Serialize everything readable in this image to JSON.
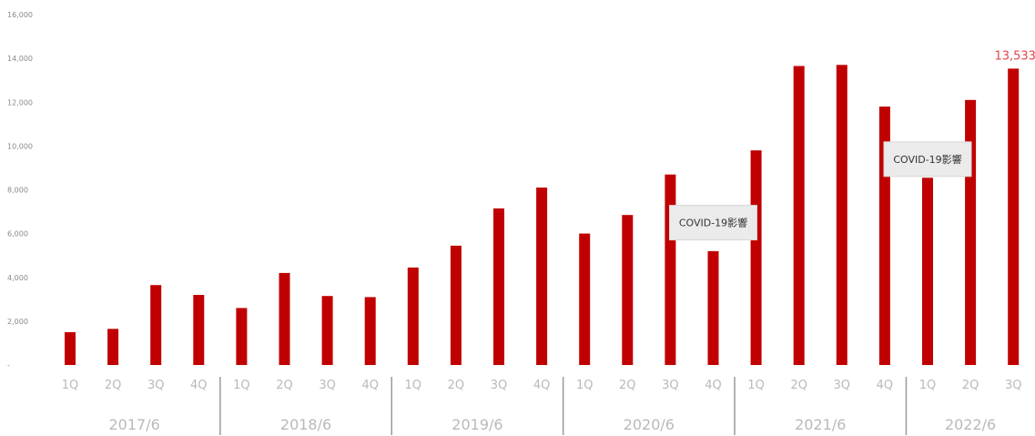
{
  "chart_data": {
    "type": "bar",
    "title": "",
    "xlabel": "",
    "ylabel": "",
    "ylim": [
      0,
      16000
    ],
    "yticks": [
      {
        "value": 0,
        "label": "-"
      },
      {
        "value": 2000,
        "label": "2,000"
      },
      {
        "value": 4000,
        "label": "4,000"
      },
      {
        "value": 6000,
        "label": "6,000"
      },
      {
        "value": 8000,
        "label": "8,000"
      },
      {
        "value": 10000,
        "label": "10,000"
      },
      {
        "value": 12000,
        "label": "12,000"
      },
      {
        "value": 14000,
        "label": "14,000"
      },
      {
        "value": 16000,
        "label": "16,000"
      }
    ],
    "categories": [
      "1Q",
      "2Q",
      "3Q",
      "4Q",
      "1Q",
      "2Q",
      "3Q",
      "4Q",
      "1Q",
      "2Q",
      "3Q",
      "4Q",
      "1Q",
      "2Q",
      "3Q",
      "4Q",
      "1Q",
      "2Q",
      "3Q",
      "4Q",
      "1Q",
      "2Q",
      "3Q"
    ],
    "groups": [
      {
        "label": "2017/6",
        "start": 0,
        "count": 4
      },
      {
        "label": "2018/6",
        "start": 4,
        "count": 4
      },
      {
        "label": "2019/6",
        "start": 8,
        "count": 4
      },
      {
        "label": "2020/6",
        "start": 12,
        "count": 4
      },
      {
        "label": "2021/6",
        "start": 16,
        "count": 4
      },
      {
        "label": "2022/6",
        "start": 20,
        "count": 3
      }
    ],
    "values": [
      1500,
      1650,
      3650,
      3200,
      2600,
      4200,
      3150,
      3100,
      4450,
      5450,
      7150,
      8100,
      6000,
      6850,
      8700,
      5200,
      9800,
      13650,
      13700,
      11800,
      8550,
      12100,
      13533
    ],
    "bar_color": "#c00000",
    "grid": false,
    "legend": "none",
    "data_labels": [
      {
        "index": 22,
        "text": "13,533",
        "color": "#e0464b"
      }
    ],
    "annotations": [
      {
        "text": "COVID-19影響",
        "near_index": 15,
        "value_level": 6500
      },
      {
        "text": "COVID-19影響",
        "near_index": 20,
        "value_level": 9400
      }
    ]
  }
}
